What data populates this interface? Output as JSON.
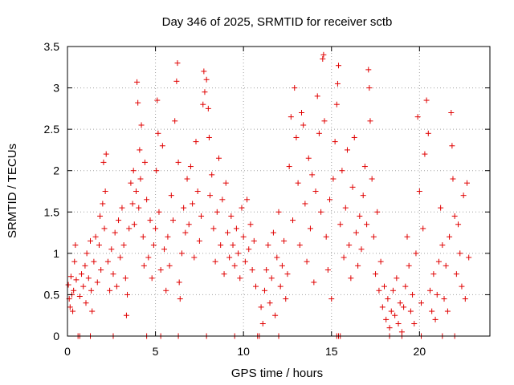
{
  "chart_data": {
    "type": "scatter",
    "title": "Day 346 of 2025, SRMTID for receiver sctb",
    "xlabel": "GPS time / hours",
    "ylabel": "SRMTID / TECUs",
    "xlim": [
      0,
      24
    ],
    "ylim": [
      0,
      3.5
    ],
    "xticks": [
      0,
      5,
      10,
      15,
      20
    ],
    "xtick_labels": [
      "0",
      "5",
      "10",
      "15",
      "20"
    ],
    "yticks": [
      0,
      0.5,
      1,
      1.5,
      2,
      2.5,
      3,
      3.5
    ],
    "ytick_labels": [
      "0",
      "0.5",
      "1",
      "1.5",
      "2",
      "2.5",
      "3",
      "3.5"
    ],
    "grid": true,
    "marker": "plus",
    "series": [
      {
        "name": "SRMTID",
        "color": "#e00000",
        "points": [
          [
            0.05,
            0.62
          ],
          [
            0.1,
            0.45
          ],
          [
            0.15,
            0.35
          ],
          [
            0.2,
            0.72
          ],
          [
            0.25,
            0.5
          ],
          [
            0.3,
            0.3
          ],
          [
            0.35,
            0.55
          ],
          [
            0.4,
            0.9
          ],
          [
            0.45,
            1.1
          ],
          [
            0.5,
            0.68
          ],
          [
            0.7,
            0.48
          ],
          [
            0.8,
            0.75
          ],
          [
            0.9,
            0.6
          ],
          [
            1.0,
            0.85
          ],
          [
            1.05,
            0.4
          ],
          [
            1.1,
            1.0
          ],
          [
            1.2,
            0.7
          ],
          [
            1.3,
            1.15
          ],
          [
            1.35,
            0.55
          ],
          [
            1.4,
            0.3
          ],
          [
            1.5,
            0.9
          ],
          [
            1.6,
            1.2
          ],
          [
            1.7,
            0.65
          ],
          [
            1.8,
            1.1
          ],
          [
            1.85,
            1.45
          ],
          [
            1.9,
            0.8
          ],
          [
            2.0,
            1.6
          ],
          [
            2.05,
            2.1
          ],
          [
            2.1,
            1.3
          ],
          [
            2.15,
            1.75
          ],
          [
            2.2,
            2.2
          ],
          [
            2.3,
            0.9
          ],
          [
            2.4,
            0.55
          ],
          [
            2.5,
            1.05
          ],
          [
            2.6,
            0.75
          ],
          [
            2.7,
            1.25
          ],
          [
            2.8,
            0.6
          ],
          [
            2.9,
            1.4
          ],
          [
            3.0,
            0.95
          ],
          [
            3.1,
            1.55
          ],
          [
            3.2,
            1.1
          ],
          [
            3.3,
            0.7
          ],
          [
            3.35,
            0.25
          ],
          [
            3.4,
            0.5
          ],
          [
            3.5,
            1.3
          ],
          [
            3.6,
            1.85
          ],
          [
            3.7,
            1.6
          ],
          [
            3.75,
            2.0
          ],
          [
            3.8,
            1.35
          ],
          [
            3.9,
            1.75
          ],
          [
            3.95,
            3.07
          ],
          [
            4.0,
            2.82
          ],
          [
            4.05,
            1.55
          ],
          [
            4.1,
            2.25
          ],
          [
            4.15,
            1.9
          ],
          [
            4.2,
            2.55
          ],
          [
            4.3,
            1.2
          ],
          [
            4.35,
            0.85
          ],
          [
            4.4,
            2.1
          ],
          [
            4.5,
            1.65
          ],
          [
            4.6,
            0.95
          ],
          [
            4.7,
            1.4
          ],
          [
            4.8,
            0.7
          ],
          [
            4.9,
            1.1
          ],
          [
            5.0,
            1.3
          ],
          [
            5.05,
            2.0
          ],
          [
            5.1,
            2.85
          ],
          [
            5.15,
            2.45
          ],
          [
            5.2,
            1.5
          ],
          [
            5.3,
            0.8
          ],
          [
            5.4,
            2.3
          ],
          [
            5.5,
            1.05
          ],
          [
            5.6,
            0.55
          ],
          [
            5.7,
            1.2
          ],
          [
            5.8,
            0.85
          ],
          [
            5.9,
            1.7
          ],
          [
            6.0,
            1.4
          ],
          [
            6.1,
            2.6
          ],
          [
            6.2,
            3.08
          ],
          [
            6.25,
            3.3
          ],
          [
            6.3,
            2.1
          ],
          [
            6.35,
            0.65
          ],
          [
            6.4,
            0.45
          ],
          [
            6.5,
            1.0
          ],
          [
            6.6,
            1.55
          ],
          [
            6.7,
            1.25
          ],
          [
            6.8,
            1.9
          ],
          [
            6.9,
            1.35
          ],
          [
            7.0,
            2.05
          ],
          [
            7.1,
            1.6
          ],
          [
            7.2,
            0.95
          ],
          [
            7.3,
            2.35
          ],
          [
            7.4,
            1.75
          ],
          [
            7.5,
            1.15
          ],
          [
            7.6,
            1.45
          ],
          [
            7.7,
            2.8
          ],
          [
            7.75,
            3.2
          ],
          [
            7.8,
            2.95
          ],
          [
            7.9,
            3.1
          ],
          [
            8.0,
            2.75
          ],
          [
            8.05,
            2.4
          ],
          [
            8.1,
            1.7
          ],
          [
            8.2,
            1.95
          ],
          [
            8.3,
            1.3
          ],
          [
            8.4,
            0.9
          ],
          [
            8.5,
            1.5
          ],
          [
            8.6,
            2.15
          ],
          [
            8.7,
            1.1
          ],
          [
            8.8,
            1.65
          ],
          [
            8.9,
            0.75
          ],
          [
            9.0,
            1.85
          ],
          [
            9.1,
            1.25
          ],
          [
            9.2,
            0.95
          ],
          [
            9.3,
            1.45
          ],
          [
            9.4,
            1.1
          ],
          [
            9.5,
            0.85
          ],
          [
            9.6,
            1.3
          ],
          [
            9.7,
            1.0
          ],
          [
            9.8,
            0.7
          ],
          [
            9.9,
            1.55
          ],
          [
            10.0,
            1.2
          ],
          [
            10.1,
            0.9
          ],
          [
            10.2,
            1.65
          ],
          [
            10.3,
            1.05
          ],
          [
            10.4,
            1.35
          ],
          [
            10.5,
            0.8
          ],
          [
            10.6,
            1.15
          ],
          [
            10.7,
            0.6
          ],
          [
            11.0,
            0.35
          ],
          [
            11.1,
            0.15
          ],
          [
            11.2,
            0.55
          ],
          [
            11.3,
            0.8
          ],
          [
            11.4,
            1.1
          ],
          [
            11.5,
            0.4
          ],
          [
            11.6,
            0.7
          ],
          [
            11.7,
            1.25
          ],
          [
            11.8,
            0.25
          ],
          [
            11.9,
            0.95
          ],
          [
            12.0,
            1.5
          ],
          [
            12.1,
            0.6
          ],
          [
            12.2,
            0.85
          ],
          [
            12.3,
            1.15
          ],
          [
            12.4,
            0.45
          ],
          [
            12.5,
            0.75
          ],
          [
            12.6,
            2.05
          ],
          [
            12.7,
            2.65
          ],
          [
            12.8,
            1.4
          ],
          [
            12.9,
            3.0
          ],
          [
            13.0,
            2.4
          ],
          [
            13.1,
            1.85
          ],
          [
            13.2,
            1.1
          ],
          [
            13.3,
            2.7
          ],
          [
            13.4,
            2.55
          ],
          [
            13.5,
            1.6
          ],
          [
            13.6,
            0.9
          ],
          [
            13.7,
            2.15
          ],
          [
            13.8,
            1.3
          ],
          [
            13.9,
            1.95
          ],
          [
            14.0,
            0.65
          ],
          [
            14.1,
            1.75
          ],
          [
            14.2,
            2.9
          ],
          [
            14.3,
            2.45
          ],
          [
            14.4,
            1.5
          ],
          [
            14.5,
            3.35
          ],
          [
            14.55,
            3.4
          ],
          [
            14.6,
            2.6
          ],
          [
            14.7,
            1.2
          ],
          [
            14.8,
            0.8
          ],
          [
            14.9,
            1.65
          ],
          [
            15.0,
            0.45
          ],
          [
            15.1,
            1.9
          ],
          [
            15.2,
            2.35
          ],
          [
            15.3,
            2.8
          ],
          [
            15.35,
            3.05
          ],
          [
            15.4,
            3.27
          ],
          [
            15.5,
            1.35
          ],
          [
            15.6,
            2.0
          ],
          [
            15.7,
            0.95
          ],
          [
            15.8,
            1.55
          ],
          [
            15.9,
            2.25
          ],
          [
            16.0,
            1.1
          ],
          [
            16.1,
            0.7
          ],
          [
            16.2,
            1.8
          ],
          [
            16.3,
            2.4
          ],
          [
            16.4,
            1.25
          ],
          [
            16.5,
            0.85
          ],
          [
            16.6,
            1.45
          ],
          [
            16.7,
            1.05
          ],
          [
            16.8,
            1.7
          ],
          [
            16.9,
            2.05
          ],
          [
            17.0,
            1.35
          ],
          [
            17.1,
            3.22
          ],
          [
            17.15,
            3.0
          ],
          [
            17.2,
            2.6
          ],
          [
            17.3,
            1.9
          ],
          [
            17.4,
            1.2
          ],
          [
            17.5,
            0.75
          ],
          [
            17.6,
            1.5
          ],
          [
            17.7,
            0.55
          ],
          [
            17.8,
            0.9
          ],
          [
            17.9,
            0.35
          ],
          [
            18.0,
            0.6
          ],
          [
            18.1,
            0.2
          ],
          [
            18.2,
            0.45
          ],
          [
            18.3,
            0.1
          ],
          [
            18.4,
            0.3
          ],
          [
            18.5,
            0.55
          ],
          [
            18.6,
            0.25
          ],
          [
            18.7,
            0.7
          ],
          [
            18.8,
            0.15
          ],
          [
            18.9,
            0.4
          ],
          [
            19.0,
            0.05
          ],
          [
            19.1,
            0.35
          ],
          [
            19.2,
            0.6
          ],
          [
            19.3,
            1.2
          ],
          [
            19.4,
            0.85
          ],
          [
            19.5,
            0.3
          ],
          [
            19.6,
            0.5
          ],
          [
            19.7,
            0.15
          ],
          [
            19.8,
            1.0
          ],
          [
            19.9,
            2.65
          ],
          [
            20.0,
            1.75
          ],
          [
            20.1,
            0.4
          ],
          [
            20.2,
            1.3
          ],
          [
            20.3,
            2.2
          ],
          [
            20.4,
            2.85
          ],
          [
            20.5,
            2.45
          ],
          [
            20.6,
            0.55
          ],
          [
            20.7,
            0.3
          ],
          [
            20.8,
            0.75
          ],
          [
            20.9,
            0.2
          ],
          [
            21.0,
            0.5
          ],
          [
            21.1,
            0.9
          ],
          [
            21.2,
            1.55
          ],
          [
            21.3,
            1.1
          ],
          [
            21.4,
            0.45
          ],
          [
            21.5,
            0.85
          ],
          [
            21.6,
            0.3
          ],
          [
            21.7,
            1.2
          ],
          [
            21.8,
            2.7
          ],
          [
            21.85,
            2.3
          ],
          [
            21.9,
            1.9
          ],
          [
            22.0,
            1.45
          ],
          [
            22.1,
            0.75
          ],
          [
            22.2,
            1.35
          ],
          [
            22.3,
            1.0
          ],
          [
            22.4,
            0.6
          ],
          [
            22.5,
            1.7
          ],
          [
            22.6,
            0.45
          ],
          [
            22.7,
            1.85
          ],
          [
            22.8,
            0.95
          ]
        ]
      }
    ],
    "zero_markers": [
      0.6,
      0.7,
      1.3,
      2.6,
      4.5,
      5.3,
      6.3,
      7.9,
      9.5,
      10.8,
      10.9,
      12.0,
      15.3,
      15.4,
      15.5,
      18.3,
      19.0,
      20.1,
      21.3,
      22.0
    ]
  }
}
